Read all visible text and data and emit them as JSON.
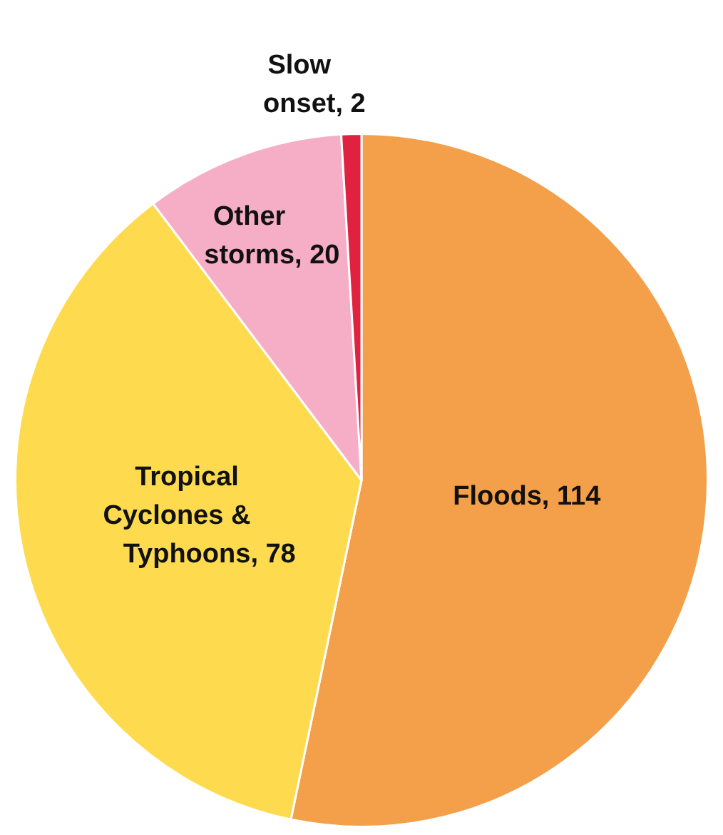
{
  "chart_data": {
    "type": "pie",
    "categories": [
      "Floods",
      "Tropical Cyclones & Typhoons",
      "Other storms",
      "Slow onset"
    ],
    "values": [
      114,
      78,
      20,
      2
    ],
    "value_labels": [
      ", 114",
      ", 78",
      ", 20",
      ", 2"
    ],
    "colors": [
      "#f4a04a",
      "#fedb4e",
      "#f6adc6",
      "#e0213f"
    ]
  }
}
